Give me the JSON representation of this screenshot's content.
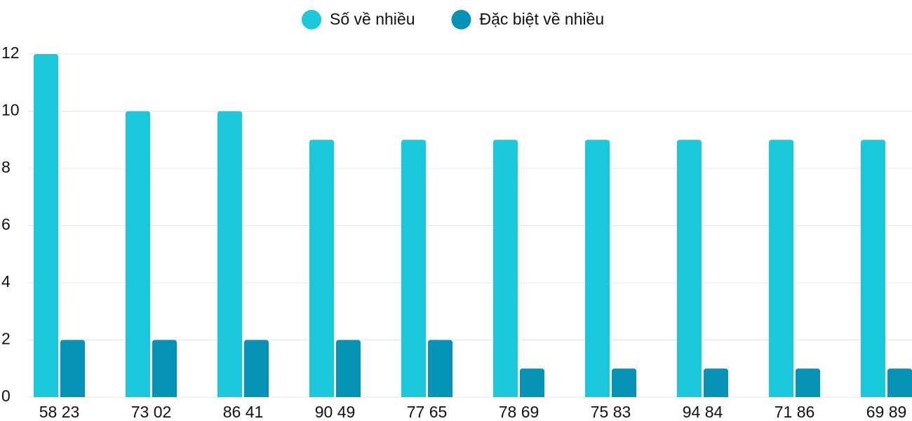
{
  "chart_data": {
    "type": "bar",
    "categories": [
      "58 23",
      "73 02",
      "86 41",
      "90 49",
      "77 65",
      "78 69",
      "75 83",
      "94 84",
      "71 86",
      "69 89"
    ],
    "series": [
      {
        "name": "Số về nhiều",
        "color": "#19c8db",
        "values": [
          12,
          10,
          10,
          9,
          9,
          9,
          9,
          9,
          9,
          9
        ]
      },
      {
        "name": "Đặc biệt về nhiều",
        "color": "#0592b7",
        "values": [
          2,
          2,
          2,
          2,
          2,
          1,
          1,
          1,
          1,
          1
        ]
      }
    ],
    "ylim": [
      0,
      12
    ],
    "yticks": [
      0,
      2,
      4,
      6,
      8,
      10,
      12
    ],
    "grid": true,
    "legend": "top"
  }
}
